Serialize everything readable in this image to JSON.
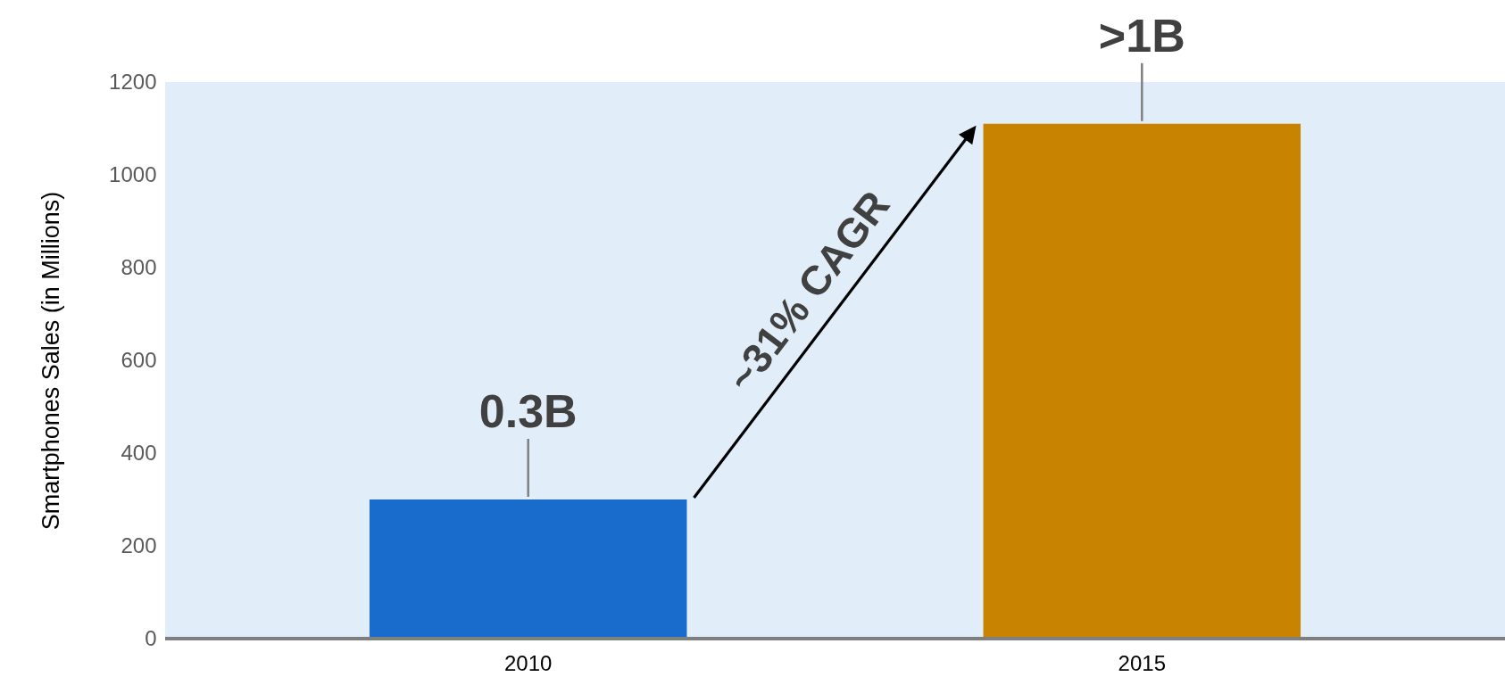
{
  "chart_data": {
    "type": "bar",
    "categories": [
      "2010",
      "2015"
    ],
    "values": [
      300,
      1110
    ],
    "colors": [
      "#1a6ccc",
      "#c88400"
    ],
    "ylabel": "Smartphones Sales (in Millions)",
    "ylim": [
      0,
      1200
    ],
    "yticks": [
      0,
      200,
      400,
      600,
      800,
      1000,
      1200
    ],
    "annotations": [
      {
        "text": "0.3B",
        "x": "2010",
        "y": 300
      },
      {
        "text": ">1B",
        "x": "2015",
        "y": 1110
      },
      "~31% CAGR"
    ]
  }
}
